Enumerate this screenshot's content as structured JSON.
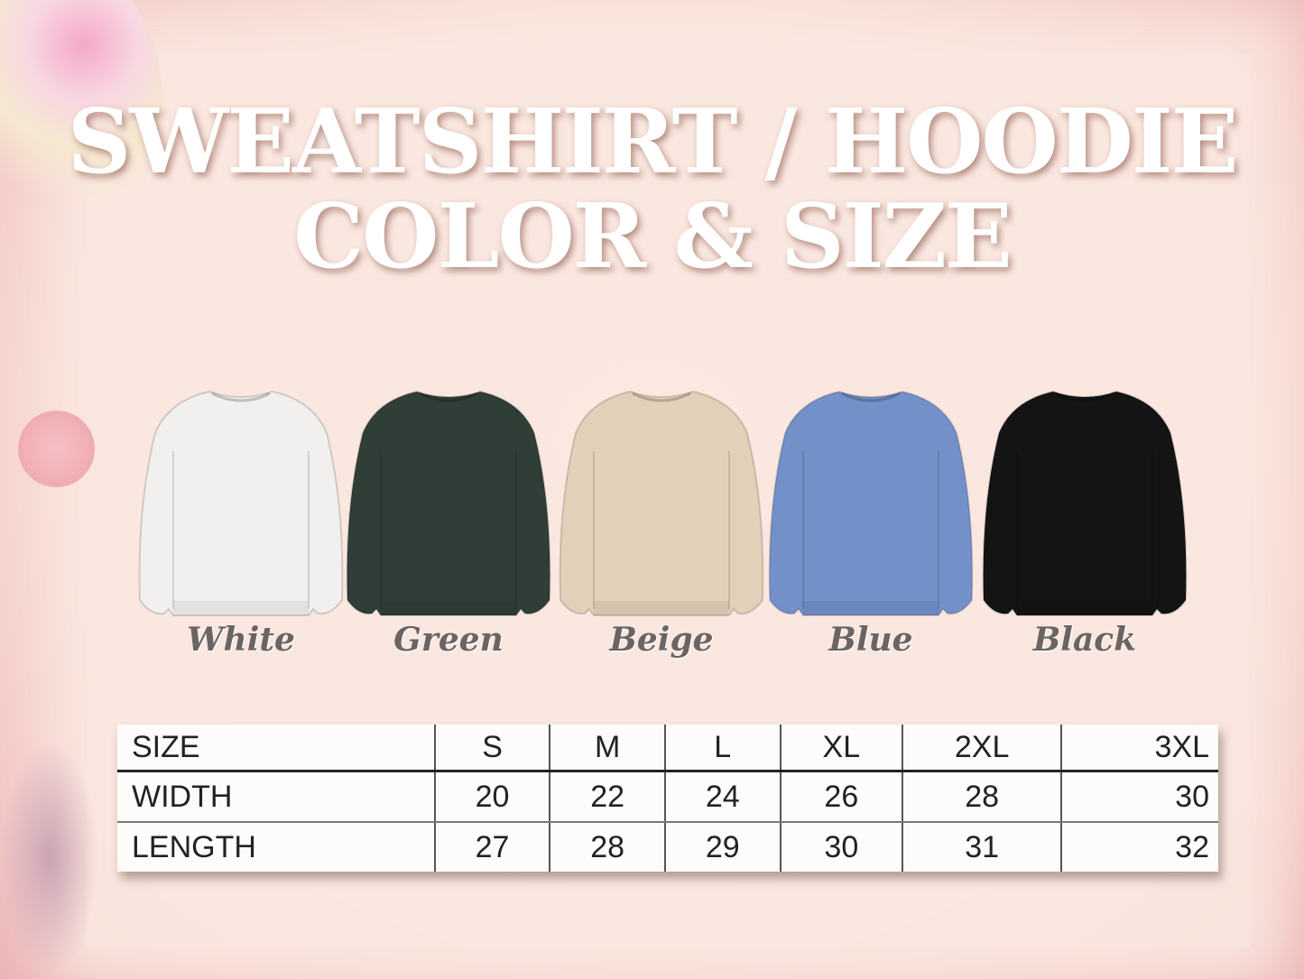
{
  "title": {
    "line1": "SWEATSHIRT / HOODIE",
    "line2": "COLOR & SIZE"
  },
  "colors": [
    {
      "label": "White",
      "hex": "#f1f0ee"
    },
    {
      "label": "Green",
      "hex": "#2f3f37"
    },
    {
      "label": "Beige",
      "hex": "#e3d0b8"
    },
    {
      "label": "Blue",
      "hex": "#7390c9"
    },
    {
      "label": "Black",
      "hex": "#141414"
    }
  ],
  "size_table": {
    "header": [
      "SIZE",
      "S",
      "M",
      "L",
      "XL",
      "2XL",
      "3XL"
    ],
    "rows": [
      [
        "WIDTH",
        "20",
        "22",
        "24",
        "26",
        "28",
        "30"
      ],
      [
        "LENGTH",
        "27",
        "28",
        "29",
        "30",
        "31",
        "32"
      ]
    ]
  }
}
